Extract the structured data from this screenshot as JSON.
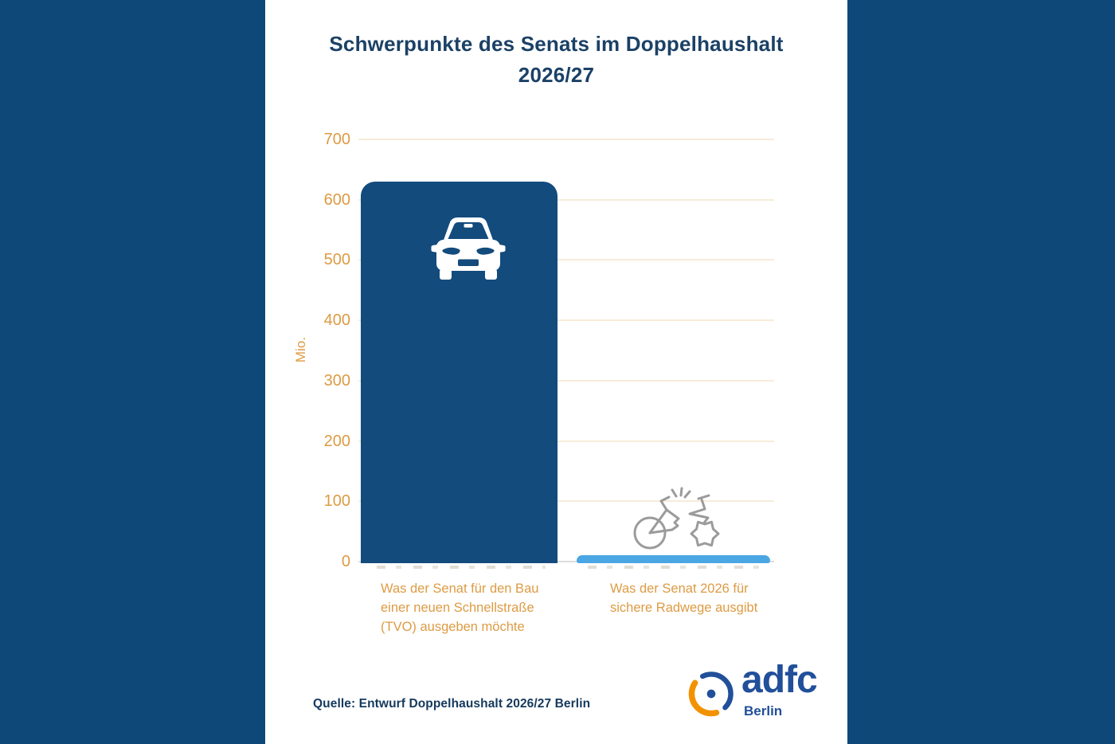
{
  "page": {
    "band_color": "#0e4879",
    "panel_color": "#ffffff"
  },
  "header": {
    "title": "Schwerpunkte des Senats im Doppelhaushalt 2026/27"
  },
  "chart_data": {
    "type": "bar",
    "title": "Schwerpunkte des Senats im Doppelhaushalt 2026/27",
    "ylabel": "Mio.",
    "ylim": [
      0,
      700
    ],
    "yticks": [
      0,
      100,
      200,
      300,
      400,
      500,
      600,
      700
    ],
    "grid": true,
    "legend": false,
    "categories": [
      "Was der Senat für den Bau einer neuen Schnellstraße (TVO) ausgeben möchte",
      "Was der Senat 2026 für sichere Radwege ausgibt"
    ],
    "values": [
      630,
      11
    ],
    "bar_colors": [
      "#134b7d",
      "#4ba6e4"
    ],
    "bar_icons": [
      "car-icon",
      "broken-bicycle-icon"
    ],
    "tick_color": "#dd9b43",
    "gridline_color": "#f6ecd9"
  },
  "annotations": {
    "color": "#dd9b43",
    "tvo": {
      "line1": "Was der Senat für den Bau",
      "line2": "einer neuen Schnellstraße",
      "line3": "(TVO) ausgeben möchte"
    },
    "radwege": {
      "line1": "Was der Senat 2026 für",
      "line2": "sichere Radwege ausgibt"
    }
  },
  "source": {
    "text": "Quelle: Entwurf Doppelhaushalt 2026/27 Berlin"
  },
  "logo": {
    "brand": "adfc",
    "region": "Berlin",
    "blue": "#214f9a",
    "orange": "#f39200"
  }
}
